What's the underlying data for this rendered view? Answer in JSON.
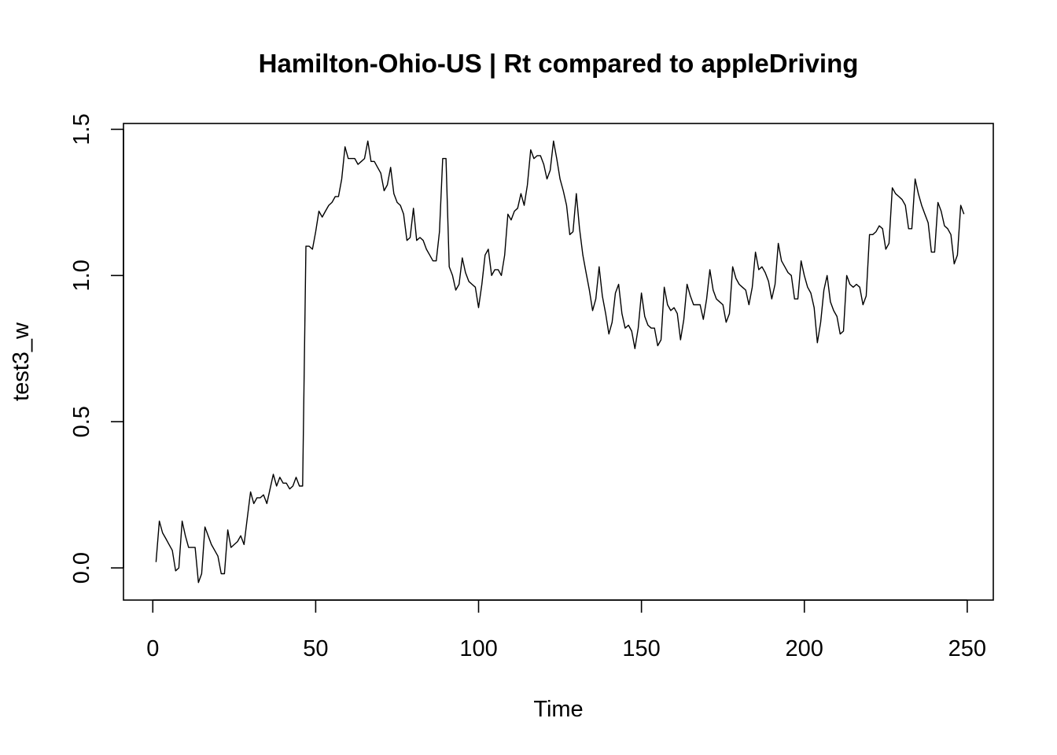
{
  "chart_data": {
    "type": "line",
    "title": "Hamilton-Ohio-US | Rt compared to appleDriving",
    "xlabel": "Time",
    "ylabel": "test3_w",
    "xlim": [
      -9,
      258
    ],
    "ylim": [
      -0.11,
      1.52
    ],
    "xticks": [
      0,
      50,
      100,
      150,
      200,
      250
    ],
    "xtick_labels": [
      "0",
      "50",
      "100",
      "150",
      "200",
      "250"
    ],
    "yticks": [
      0,
      0.5,
      1,
      1.5
    ],
    "ytick_labels": [
      "0.0",
      "0.5",
      "1.0",
      "1.5"
    ],
    "grid": false,
    "line_color": "#000000",
    "series": [
      {
        "x_start": 1,
        "values": [
          0.02,
          0.16,
          0.12,
          0.1,
          0.08,
          0.06,
          -0.01,
          0.0,
          0.16,
          0.11,
          0.07,
          0.07,
          0.07,
          -0.05,
          -0.02,
          0.14,
          0.11,
          0.08,
          0.06,
          0.04,
          -0.02,
          -0.02,
          0.13,
          0.07,
          0.08,
          0.09,
          0.11,
          0.08,
          0.17,
          0.26,
          0.22,
          0.24,
          0.24,
          0.25,
          0.22,
          0.27,
          0.32,
          0.28,
          0.31,
          0.29,
          0.29,
          0.27,
          0.28,
          0.31,
          0.28,
          0.28,
          1.1,
          1.1,
          1.09,
          1.15,
          1.22,
          1.2,
          1.22,
          1.24,
          1.25,
          1.27,
          1.27,
          1.33,
          1.44,
          1.4,
          1.4,
          1.4,
          1.38,
          1.39,
          1.4,
          1.46,
          1.39,
          1.39,
          1.37,
          1.35,
          1.29,
          1.31,
          1.37,
          1.28,
          1.25,
          1.24,
          1.21,
          1.12,
          1.13,
          1.23,
          1.12,
          1.13,
          1.12,
          1.09,
          1.07,
          1.05,
          1.05,
          1.15,
          1.4,
          1.4,
          1.03,
          1.0,
          0.95,
          0.97,
          1.06,
          1.01,
          0.98,
          0.97,
          0.96,
          0.89,
          0.97,
          1.07,
          1.09,
          1.0,
          1.02,
          1.02,
          1.0,
          1.07,
          1.21,
          1.19,
          1.22,
          1.23,
          1.28,
          1.24,
          1.31,
          1.43,
          1.4,
          1.41,
          1.41,
          1.38,
          1.33,
          1.36,
          1.46,
          1.4,
          1.33,
          1.29,
          1.24,
          1.14,
          1.15,
          1.28,
          1.16,
          1.07,
          1.01,
          0.95,
          0.88,
          0.92,
          1.03,
          0.93,
          0.87,
          0.8,
          0.84,
          0.94,
          0.97,
          0.87,
          0.82,
          0.83,
          0.81,
          0.75,
          0.82,
          0.94,
          0.86,
          0.83,
          0.82,
          0.82,
          0.76,
          0.78,
          0.96,
          0.9,
          0.88,
          0.89,
          0.87,
          0.78,
          0.85,
          0.97,
          0.93,
          0.9,
          0.9,
          0.9,
          0.85,
          0.92,
          1.02,
          0.95,
          0.92,
          0.91,
          0.9,
          0.84,
          0.87,
          1.03,
          0.99,
          0.97,
          0.96,
          0.95,
          0.9,
          0.96,
          1.08,
          1.02,
          1.03,
          1.01,
          0.98,
          0.92,
          0.97,
          1.11,
          1.05,
          1.03,
          1.01,
          1.0,
          0.92,
          0.92,
          1.05,
          1.0,
          0.96,
          0.94,
          0.89,
          0.77,
          0.84,
          0.95,
          1.0,
          0.91,
          0.88,
          0.86,
          0.8,
          0.81,
          1.0,
          0.97,
          0.96,
          0.97,
          0.96,
          0.9,
          0.93,
          1.14,
          1.14,
          1.15,
          1.17,
          1.16,
          1.09,
          1.11,
          1.3,
          1.28,
          1.27,
          1.26,
          1.24,
          1.16,
          1.16,
          1.33,
          1.28,
          1.24,
          1.21,
          1.18,
          1.08,
          1.08,
          1.25,
          1.22,
          1.17,
          1.16,
          1.14,
          1.04,
          1.07,
          1.24,
          1.21
        ]
      }
    ]
  }
}
